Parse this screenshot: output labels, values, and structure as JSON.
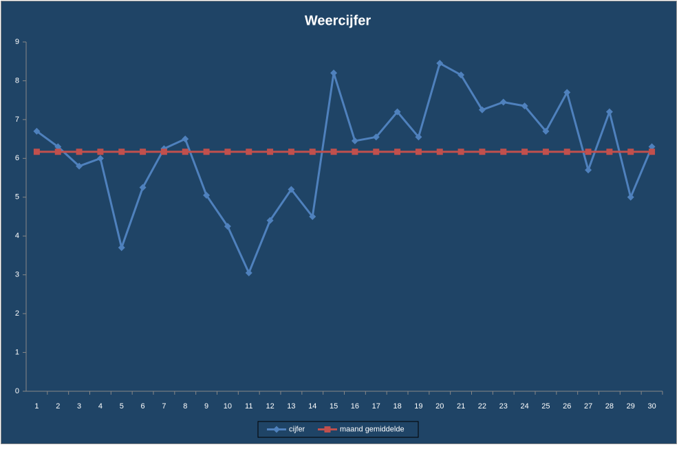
{
  "chart_data": {
    "type": "line",
    "title": "Weercijfer",
    "categories": [
      1,
      2,
      3,
      4,
      5,
      6,
      7,
      8,
      9,
      10,
      11,
      12,
      13,
      14,
      15,
      16,
      17,
      18,
      19,
      20,
      21,
      22,
      23,
      24,
      25,
      26,
      27,
      28,
      29,
      30
    ],
    "series": [
      {
        "name": "cijfer",
        "color": "#4f81bd",
        "marker": "diamond",
        "values": [
          6.7,
          6.3,
          5.8,
          6.0,
          3.7,
          5.25,
          6.25,
          6.5,
          5.05,
          4.25,
          3.05,
          4.4,
          5.2,
          4.5,
          8.2,
          6.45,
          6.55,
          7.2,
          6.55,
          8.45,
          8.15,
          7.25,
          7.45,
          7.35,
          6.7,
          7.7,
          5.7,
          7.2,
          5.0,
          6.3
        ]
      },
      {
        "name": "maand gemiddelde",
        "color": "#c0504d",
        "marker": "square",
        "values": [
          6.17,
          6.17,
          6.17,
          6.17,
          6.17,
          6.17,
          6.17,
          6.17,
          6.17,
          6.17,
          6.17,
          6.17,
          6.17,
          6.17,
          6.17,
          6.17,
          6.17,
          6.17,
          6.17,
          6.17,
          6.17,
          6.17,
          6.17,
          6.17,
          6.17,
          6.17,
          6.17,
          6.17,
          6.17,
          6.17
        ]
      }
    ],
    "ylim": [
      0,
      9
    ],
    "yticks": [
      0,
      1,
      2,
      3,
      4,
      5,
      6,
      7,
      8,
      9
    ],
    "grid": false,
    "legend": "bottom"
  }
}
